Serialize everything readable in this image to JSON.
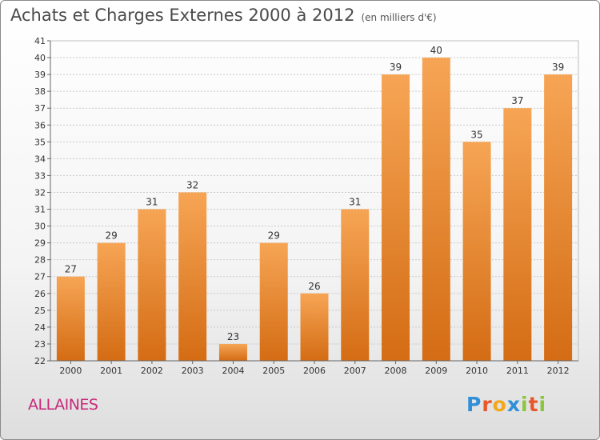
{
  "chart_data": {
    "type": "bar",
    "title": "Achats et Charges Externes 2000 à 2012",
    "subtitle": "(en milliers d'€)",
    "categories": [
      "2000",
      "2001",
      "2002",
      "2003",
      "2004",
      "2005",
      "2006",
      "2007",
      "2008",
      "2009",
      "2010",
      "2011",
      "2012"
    ],
    "values": [
      27,
      29,
      31,
      32,
      23,
      29,
      26,
      31,
      39,
      40,
      35,
      37,
      39
    ],
    "ylim": [
      22,
      41
    ],
    "yticks": [
      22,
      23,
      24,
      25,
      26,
      27,
      28,
      29,
      30,
      31,
      32,
      33,
      34,
      35,
      36,
      37,
      38,
      39,
      40,
      41
    ],
    "grid": true,
    "xlabel": "",
    "ylabel": "",
    "bar_color": "#f0903a"
  },
  "commune": "ALLAINES",
  "logo": {
    "letters": [
      "P",
      "r",
      "o",
      "x",
      "i",
      "t",
      "i"
    ],
    "colors": [
      "#2f8fd8",
      "#e8572b",
      "#f2a81d",
      "#2f8fd8",
      "#8cc63f",
      "#e8572b",
      "#8cc63f"
    ]
  }
}
